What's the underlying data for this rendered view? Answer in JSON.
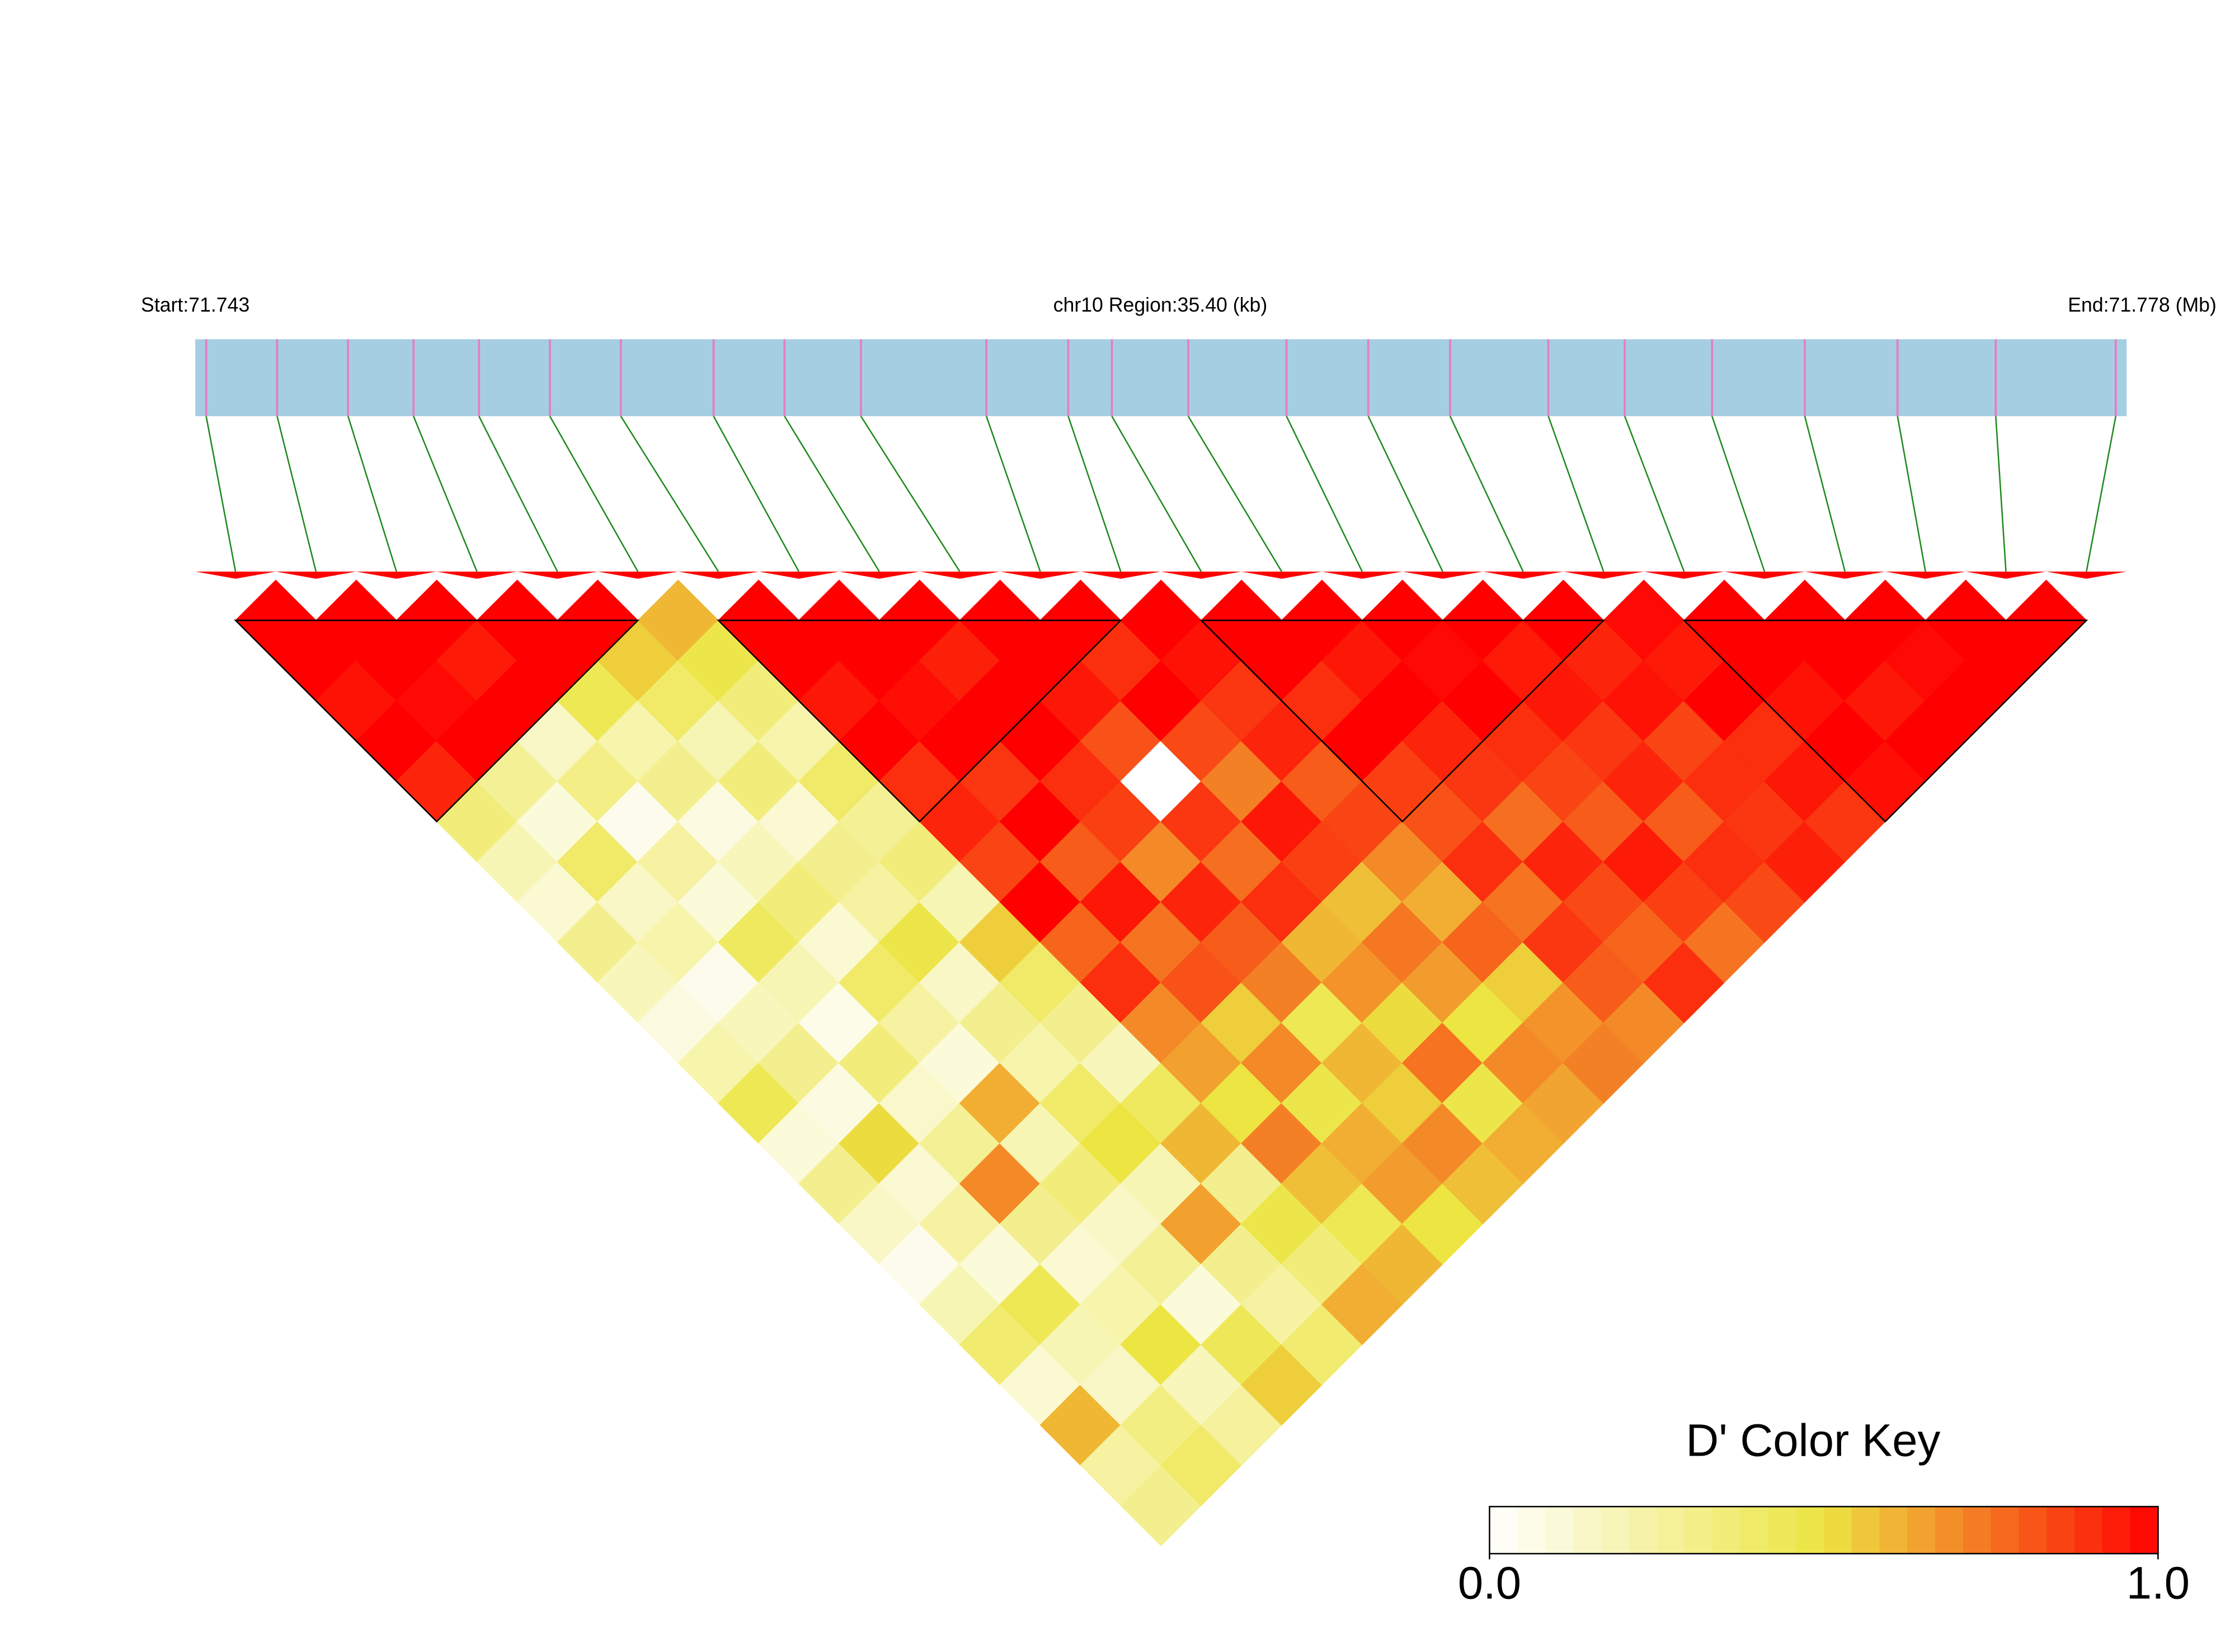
{
  "chart_data": {
    "type": "ldheatmap",
    "start_label": "Start:71.743",
    "region_label": "chr10 Region:35.40 (kb)",
    "end_label": "End:71.778 (Mb)",
    "xlim": [
      71.743,
      71.7784
    ],
    "snp_positions": [
      71.7432,
      71.7445,
      71.7458,
      71.747,
      71.7482,
      71.7495,
      71.7508,
      71.7525,
      71.7538,
      71.7552,
      71.7575,
      71.759,
      71.7598,
      71.7612,
      71.763,
      71.7645,
      71.766,
      71.7678,
      71.7692,
      71.7708,
      71.7725,
      71.7742,
      71.776,
      71.7782
    ],
    "dprime": [
      [
        1,
        1,
        0.96,
        1,
        0.92,
        0.35,
        0.2,
        0.12,
        0.3,
        0.18,
        0.08,
        0.22,
        0.45,
        0.1,
        0.3,
        0.15,
        0.05,
        0.2,
        0.38,
        0.12,
        0.6,
        0.25,
        0.3
      ],
      [
        1,
        1,
        0.98,
        1,
        0.28,
        0.1,
        0.4,
        0.15,
        0.22,
        0.05,
        0.18,
        0.3,
        0.08,
        0.52,
        0.12,
        0.25,
        0.1,
        0.45,
        0.2,
        0.15,
        0.33,
        0.4
      ],
      [
        1,
        0.94,
        1,
        0.15,
        0.32,
        0.05,
        0.25,
        0.1,
        0.42,
        0.2,
        0.06,
        0.35,
        0.14,
        0.28,
        0.7,
        0.3,
        0.12,
        0.22,
        0.5,
        0.18,
        0.26
      ],
      [
        1,
        1,
        0.45,
        0.22,
        0.3,
        0.08,
        0.18,
        0.35,
        0.12,
        0.4,
        0.25,
        0.1,
        0.62,
        0.2,
        0.35,
        0.15,
        0.28,
        0.1,
        0.44,
        0.55
      ],
      [
        1,
        0.55,
        0.4,
        0.2,
        0.35,
        0.12,
        0.3,
        0.25,
        0.48,
        0.15,
        0.3,
        0.22,
        0.4,
        0.5,
        0.2,
        0.65,
        0.3,
        0.25,
        0.38
      ],
      [
        0.6,
        0.48,
        0.35,
        0.22,
        0.4,
        0.28,
        0.35,
        0.2,
        0.55,
        0.4,
        0.3,
        0.18,
        0.42,
        0.6,
        0.3,
        0.48,
        0.35,
        0.62
      ],
      [
        1,
        1,
        0.95,
        1,
        0.9,
        0.92,
        0.85,
        1,
        0.78,
        0.9,
        0.7,
        0.65,
        0.5,
        0.72,
        0.58,
        0.45,
        0.6
      ],
      [
        1,
        1,
        0.97,
        1,
        0.88,
        1,
        0.8,
        0.95,
        0.75,
        0.82,
        0.55,
        0.7,
        0.48,
        0.62,
        0.66,
        0.5
      ],
      [
        1,
        0.93,
        1,
        1,
        0.9,
        0.86,
        0.7,
        0.92,
        0.8,
        0.72,
        0.45,
        0.6,
        0.55,
        0.7,
        0.58
      ],
      [
        1,
        1,
        0.95,
        0.82,
        0,
        0.88,
        0.76,
        0.9,
        0.6,
        0.68,
        0.52,
        0.75,
        0.48,
        0.62
      ],
      [
        1,
        0.9,
        1,
        0.84,
        0.72,
        0.95,
        0.86,
        0.58,
        0.74,
        0.66,
        0.5,
        0.7,
        0.64
      ],
      [
        1,
        0.96,
        0.88,
        0.92,
        0.8,
        0.85,
        0.7,
        0.62,
        0.78,
        0.55,
        0.68,
        0.72
      ],
      [
        1,
        1,
        0.9,
        1,
        0.86,
        0.82,
        0.9,
        0.75,
        0.88,
        0.8,
        0.7
      ],
      [
        1,
        0.95,
        1,
        0.92,
        0.88,
        0.76,
        0.92,
        0.84,
        0.78,
        0.9
      ],
      [
        1,
        0.98,
        1,
        0.9,
        0.85,
        0.8,
        0.94,
        0.86,
        0.75
      ],
      [
        1,
        0.94,
        0.95,
        0.88,
        0.92,
        0.8,
        0.9,
        0.84
      ],
      [
        1,
        0.92,
        0.96,
        0.85,
        0.9,
        0.88,
        0.93
      ],
      [
        0.98,
        0.94,
        1,
        0.9,
        0.95,
        0.88
      ],
      [
        1,
        1,
        0.96,
        1,
        0.97
      ],
      [
        1,
        1,
        0.95,
        1
      ],
      [
        1,
        0.98,
        1
      ],
      [
        1,
        1
      ],
      [
        1
      ]
    ],
    "blocks": [
      [
        0,
        5
      ],
      [
        6,
        11
      ],
      [
        12,
        17
      ],
      [
        18,
        23
      ]
    ],
    "bar_color": "#a6cee3",
    "snp_color": "#e57fc4",
    "connector_color": "#1f8a1f",
    "colors": {
      "low": "#ffffff",
      "mid": "#ece542",
      "high": "#ff0000"
    },
    "colorkey_title": "D' Color Key",
    "clim": [
      0,
      1
    ],
    "colorkey_ticks": [
      {
        "value": 0,
        "label": "0.0"
      },
      {
        "value": 1,
        "label": "1.0"
      }
    ]
  }
}
